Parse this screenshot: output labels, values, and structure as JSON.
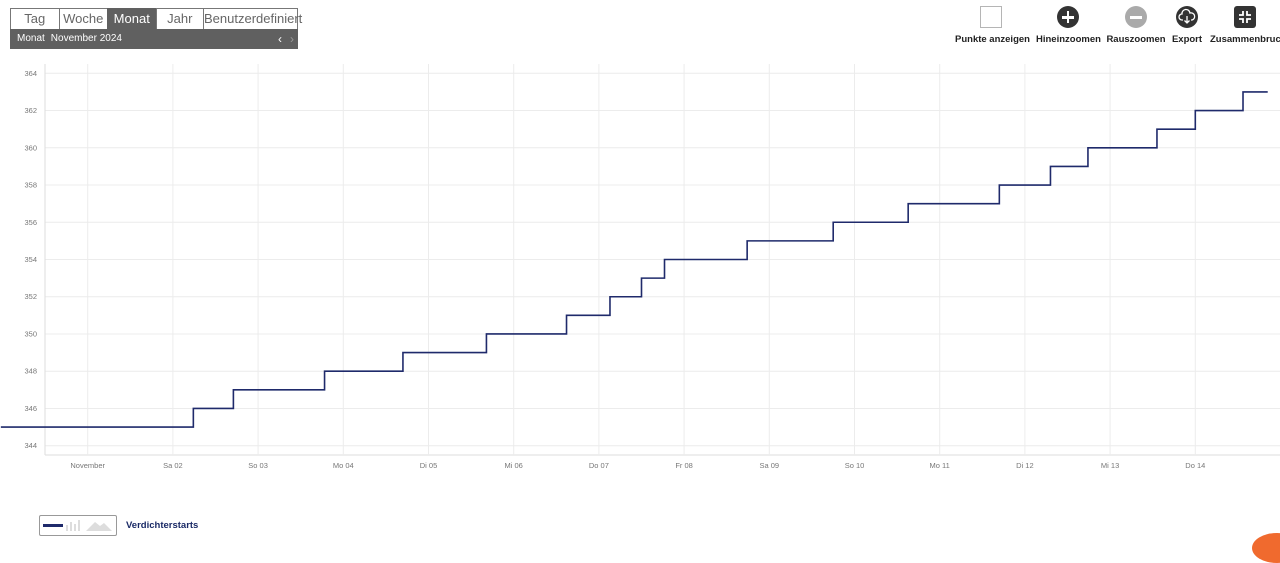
{
  "period": {
    "tabs": [
      {
        "label": "Tag"
      },
      {
        "label": "Woche"
      },
      {
        "label": "Monat"
      },
      {
        "label": "Jahr"
      },
      {
        "label": "Benutzerdefiniert"
      }
    ],
    "active_tab": "Monat",
    "sub_label": "Monat",
    "sub_value": "November 2024",
    "prev_symbol": "‹",
    "next_symbol": "›"
  },
  "toolbar": {
    "show_points": "Punkte anzeigen",
    "zoom_in": "Hineinzoomen",
    "zoom_out": "Rauszoomen",
    "export": "Export",
    "collapse": "Zusammenbruch"
  },
  "colors": {
    "series": "#1f2a6b",
    "tab_active": "#606060",
    "accent": "#f06a2e"
  },
  "chart_data": {
    "type": "line",
    "step": true,
    "x_tick_labels": [
      "November",
      "Sa 02",
      "So 03",
      "Mo 04",
      "Di 05",
      "Mi 06",
      "Do 07",
      "Fr 08",
      "Sa 09",
      "So 10",
      "Mo 11",
      "Di 12",
      "Mi 13",
      "Do 14"
    ],
    "xlim_days": [
      0.5,
      15.0
    ],
    "ylim": [
      343.5,
      364.5
    ],
    "y_ticks": [
      344,
      346,
      348,
      350,
      352,
      354,
      356,
      358,
      360,
      362,
      364
    ],
    "grid": true,
    "legend_position": "bottom-left",
    "series": [
      {
        "name": "Verdichterstarts",
        "x_days": [
          0.45,
          2.24,
          2.71,
          3.78,
          4.7,
          5.68,
          6.62,
          7.13,
          7.5,
          7.77,
          8.74,
          9.75,
          10.63,
          11.7,
          12.3,
          12.74,
          13.55,
          14.0,
          14.56,
          14.85
        ],
        "y": [
          345,
          346,
          347,
          348,
          349,
          350,
          351,
          352,
          353,
          354,
          355,
          356,
          357,
          358,
          359,
          360,
          361,
          362,
          363,
          363
        ]
      }
    ]
  },
  "legend": {
    "label": "Verdichterstarts"
  }
}
